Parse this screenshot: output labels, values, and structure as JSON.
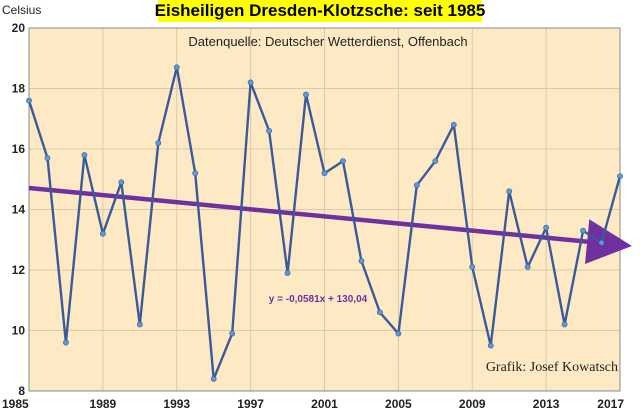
{
  "chart_data": {
    "type": "line",
    "title": "Eisheiligen Dresden-Klotzsche: seit 1985",
    "subtitle": "Datenquelle: Deutscher Wetterdienst, Offenbach",
    "ylabel": "Celsius",
    "credit": "Grafik: Josef Kowatsch",
    "xlim": [
      1985,
      2017
    ],
    "ylim": [
      8,
      20
    ],
    "x_ticks": [
      "1985",
      "1989",
      "1993",
      "1997",
      "2001",
      "2005",
      "2009",
      "2013",
      "2017"
    ],
    "y_ticks": [
      "8",
      "10",
      "12",
      "14",
      "16",
      "18",
      "20"
    ],
    "grid": true,
    "colors": {
      "plot_background": "#fdeac4",
      "title_background": "#ffff00",
      "series_line": "#3b5a9a",
      "series_marker": "#5b9bd5",
      "trend_line": "#7030a0",
      "grid": "#d9c9a8"
    },
    "series": [
      {
        "x": [
          1985,
          1986,
          1987,
          1988,
          1989,
          1990,
          1991,
          1992,
          1993,
          1994,
          1995,
          1996,
          1997,
          1998,
          1999,
          2000,
          2001,
          2002,
          2003,
          2004,
          2005,
          2006,
          2007,
          2008,
          2009,
          2010,
          2011,
          2012,
          2013,
          2014,
          2015,
          2016,
          2017
        ],
        "values": [
          17.6,
          15.7,
          9.6,
          15.8,
          13.2,
          14.9,
          10.2,
          16.2,
          18.7,
          15.2,
          8.4,
          9.9,
          18.2,
          16.6,
          11.9,
          17.8,
          15.2,
          15.6,
          12.3,
          10.6,
          9.9,
          14.8,
          15.6,
          16.8,
          12.1,
          9.5,
          14.6,
          12.1,
          13.4,
          10.2,
          13.3,
          12.9,
          15.1
        ]
      }
    ],
    "trendline": {
      "equation": "y = -0,0581x + 130,04",
      "slope": -0.0581,
      "intercept": 130.04
    }
  }
}
